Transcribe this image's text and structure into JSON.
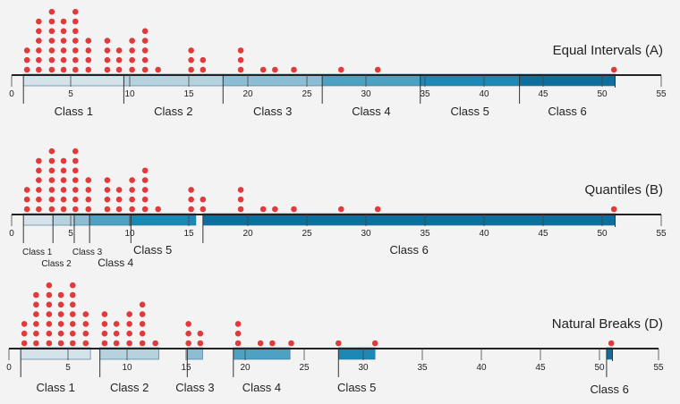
{
  "chart_data": [
    {
      "type": "scatter",
      "subtype": "dot-plot-with-class-bars",
      "title": "Equal Intervals (A)",
      "xlim": [
        0,
        55
      ],
      "ticks": [
        "0",
        "5",
        "10",
        "15",
        "20",
        "25",
        "30",
        "35",
        "40",
        "45",
        "50",
        "55"
      ],
      "point_color": "#e03a3a",
      "stacks": [
        {
          "x": 1.3,
          "count": 3
        },
        {
          "x": 2.3,
          "count": 6
        },
        {
          "x": 3.4,
          "count": 7
        },
        {
          "x": 4.4,
          "count": 6
        },
        {
          "x": 5.4,
          "count": 7
        },
        {
          "x": 6.5,
          "count": 4
        },
        {
          "x": 8.1,
          "count": 4
        },
        {
          "x": 9.1,
          "count": 3
        },
        {
          "x": 10.2,
          "count": 4
        },
        {
          "x": 11.3,
          "count": 5
        },
        {
          "x": 12.4,
          "count": 1
        },
        {
          "x": 15.2,
          "count": 3
        },
        {
          "x": 16.2,
          "count": 2
        },
        {
          "x": 19.4,
          "count": 3
        },
        {
          "x": 21.3,
          "count": 1
        },
        {
          "x": 22.3,
          "count": 1
        },
        {
          "x": 23.9,
          "count": 1
        },
        {
          "x": 27.9,
          "count": 1
        },
        {
          "x": 31.0,
          "count": 1
        },
        {
          "x": 51.0,
          "count": 1
        }
      ],
      "classes": [
        {
          "label": "Class 1",
          "start": 1.0,
          "end": 9.5,
          "color": "#d4e3ea"
        },
        {
          "label": "Class 2",
          "start": 9.5,
          "end": 17.9,
          "color": "#b7d2df"
        },
        {
          "label": "Class 3",
          "start": 17.9,
          "end": 26.3,
          "color": "#8dbdd3"
        },
        {
          "label": "Class 4",
          "start": 26.3,
          "end": 34.6,
          "color": "#4da1c3"
        },
        {
          "label": "Class 5",
          "start": 34.6,
          "end": 43.0,
          "color": "#1b89b5"
        },
        {
          "label": "Class 6",
          "start": 43.0,
          "end": 51.1,
          "color": "#0d6f9d"
        }
      ]
    },
    {
      "type": "scatter",
      "subtype": "dot-plot-with-class-bars",
      "title": "Quantiles (B)",
      "xlim": [
        0,
        55
      ],
      "ticks": [
        "0",
        "5",
        "10",
        "15",
        "20",
        "25",
        "30",
        "35",
        "40",
        "45",
        "50",
        "55"
      ],
      "point_color": "#e03a3a",
      "stacks": [
        {
          "x": 1.3,
          "count": 3
        },
        {
          "x": 2.3,
          "count": 6
        },
        {
          "x": 3.4,
          "count": 7
        },
        {
          "x": 4.4,
          "count": 6
        },
        {
          "x": 5.4,
          "count": 7
        },
        {
          "x": 6.5,
          "count": 4
        },
        {
          "x": 8.1,
          "count": 4
        },
        {
          "x": 9.1,
          "count": 3
        },
        {
          "x": 10.2,
          "count": 4
        },
        {
          "x": 11.3,
          "count": 5
        },
        {
          "x": 12.4,
          "count": 1
        },
        {
          "x": 15.2,
          "count": 3
        },
        {
          "x": 16.2,
          "count": 2
        },
        {
          "x": 19.4,
          "count": 3
        },
        {
          "x": 21.3,
          "count": 1
        },
        {
          "x": 22.3,
          "count": 1
        },
        {
          "x": 23.9,
          "count": 1
        },
        {
          "x": 27.9,
          "count": 1
        },
        {
          "x": 31.0,
          "count": 1
        },
        {
          "x": 51.0,
          "count": 1
        }
      ],
      "classes": [
        {
          "label": "Class 1",
          "start": 1.0,
          "end": 3.5,
          "color": "#d4e3ea"
        },
        {
          "label": "Class 2",
          "start": 3.5,
          "end": 5.3,
          "color": "#b7d2df"
        },
        {
          "label": "Class 3",
          "start": 5.3,
          "end": 6.6,
          "color": "#8dbdd3"
        },
        {
          "label": "Class 4",
          "start": 6.6,
          "end": 10.1,
          "color": "#4da1c3"
        },
        {
          "label": "Class 5",
          "start": 10.1,
          "end": 15.6,
          "color": "#1b89b5"
        },
        {
          "label": "Class 6",
          "start": 16.2,
          "end": 51.1,
          "color": "#0d6f9d"
        }
      ]
    },
    {
      "type": "scatter",
      "subtype": "dot-plot-with-class-bars",
      "title": "Natural Breaks (D)",
      "xlim": [
        0,
        55
      ],
      "ticks": [
        "0",
        "5",
        "10",
        "15",
        "20",
        "25",
        "30",
        "35",
        "40",
        "45",
        "50",
        "55"
      ],
      "point_color": "#e03a3a",
      "stacks": [
        {
          "x": 1.3,
          "count": 3
        },
        {
          "x": 2.3,
          "count": 6
        },
        {
          "x": 3.4,
          "count": 7
        },
        {
          "x": 4.4,
          "count": 6
        },
        {
          "x": 5.4,
          "count": 7
        },
        {
          "x": 6.5,
          "count": 4
        },
        {
          "x": 8.1,
          "count": 4
        },
        {
          "x": 9.1,
          "count": 3
        },
        {
          "x": 10.2,
          "count": 4
        },
        {
          "x": 11.3,
          "count": 5
        },
        {
          "x": 12.4,
          "count": 1
        },
        {
          "x": 15.2,
          "count": 3
        },
        {
          "x": 16.2,
          "count": 2
        },
        {
          "x": 19.4,
          "count": 3
        },
        {
          "x": 21.3,
          "count": 1
        },
        {
          "x": 22.3,
          "count": 1
        },
        {
          "x": 23.9,
          "count": 1
        },
        {
          "x": 27.9,
          "count": 1
        },
        {
          "x": 31.0,
          "count": 1
        },
        {
          "x": 51.0,
          "count": 1
        }
      ],
      "classes": [
        {
          "label": "Class 1",
          "start": 1.0,
          "end": 6.9,
          "color": "#d4e3ea"
        },
        {
          "label": "Class 2",
          "start": 7.7,
          "end": 12.7,
          "color": "#b7d2df"
        },
        {
          "label": "Class 3",
          "start": 15.1,
          "end": 16.4,
          "color": "#8dbdd3"
        },
        {
          "label": "Class 4",
          "start": 19.0,
          "end": 23.8,
          "color": "#4da1c3"
        },
        {
          "label": "Class 5",
          "start": 27.9,
          "end": 31.0,
          "color": "#1b89b5"
        },
        {
          "label": "Class 6",
          "start": 50.6,
          "end": 51.1,
          "color": "#0d6f9d"
        }
      ]
    }
  ]
}
